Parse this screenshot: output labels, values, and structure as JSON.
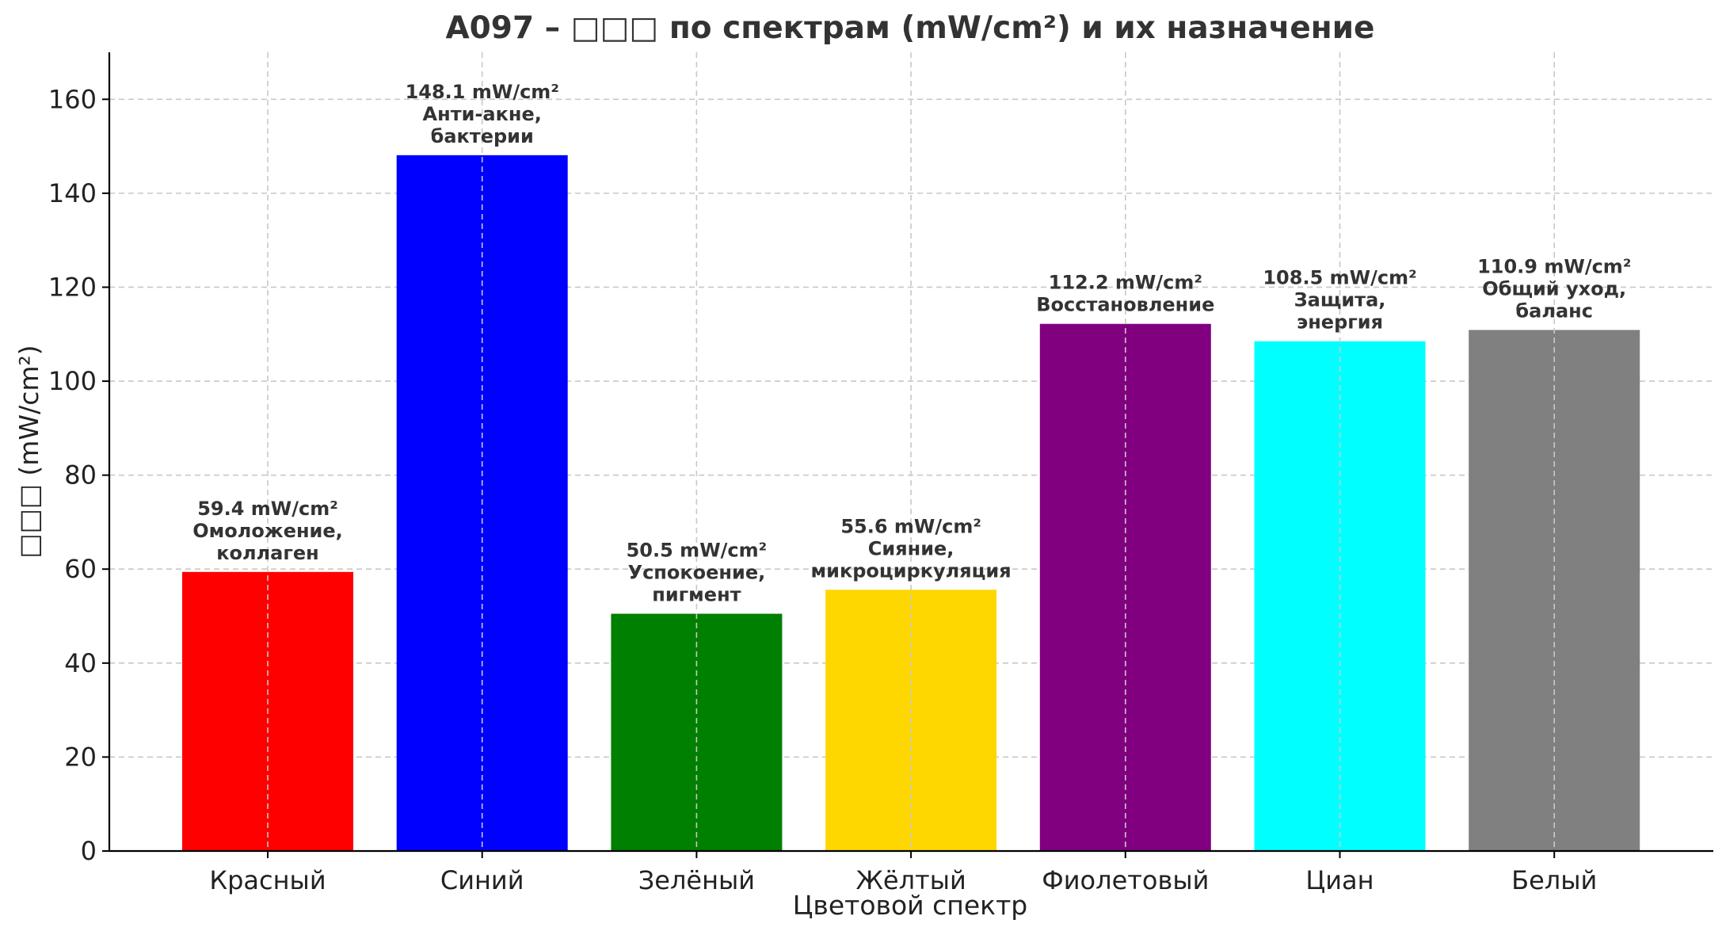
{
  "chart_data": {
    "type": "bar",
    "title": "A097 – □□□ по спектрам (mW/cm²) и их назначение",
    "xlabel": "Цветовой спектр",
    "ylabel": "□□□ (mW/cm²)",
    "categories": [
      "Красный",
      "Синий",
      "Зелёный",
      "Жёлтый",
      "Фиолетовый",
      "Циан",
      "Белый"
    ],
    "values": [
      59.4,
      148.1,
      50.5,
      55.6,
      112.2,
      108.5,
      110.9
    ],
    "colors": [
      "#ff0000",
      "#0000ff",
      "#008000",
      "#ffd700",
      "#800080",
      "#00ffff",
      "#808080"
    ],
    "bar_labels": [
      [
        "59.4 mW/cm²",
        "Омоложение,",
        "коллаген"
      ],
      [
        "148.1 mW/cm²",
        "Анти-акне,",
        "бактерии"
      ],
      [
        "50.5 mW/cm²",
        "Успокоение,",
        "пигмент"
      ],
      [
        "55.6 mW/cm²",
        "Сияние,",
        "микроциркуляция"
      ],
      [
        "112.2 mW/cm²",
        "Восстановление"
      ],
      [
        "108.5 mW/cm²",
        "Защита,",
        "энергия"
      ],
      [
        "110.9 mW/cm²",
        "Общий уход,",
        "баланс"
      ]
    ],
    "ylim": [
      0,
      170
    ],
    "yticks": [
      0,
      20,
      40,
      60,
      80,
      100,
      120,
      140,
      160
    ],
    "grid": true,
    "legend": "none"
  }
}
